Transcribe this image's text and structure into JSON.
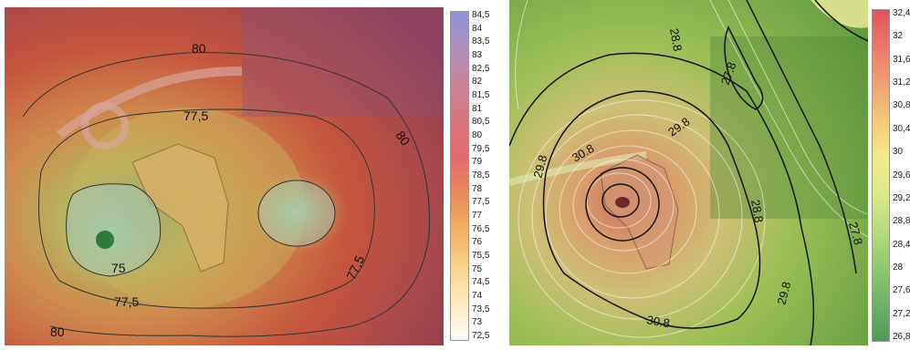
{
  "left_map": {
    "contour_labels": [
      "80",
      "77,5",
      "80",
      "77,5",
      "75",
      "77,5",
      "80"
    ],
    "colorbar": {
      "ticks": [
        "84,5",
        "84",
        "83,5",
        "83",
        "82,5",
        "82",
        "81,5",
        "81",
        "80,5",
        "80",
        "79,5",
        "79",
        "78,5",
        "78",
        "77,5",
        "77",
        "76,5",
        "76",
        "75,5",
        "75",
        "74,5",
        "74",
        "73,5",
        "73",
        "72,5"
      ],
      "colors": [
        "#8e95d6",
        "#b08fbf",
        "#c98597",
        "#d8747a",
        "#e06a6e",
        "#e98a5a",
        "#f2b061",
        "#f8d48c",
        "#fbe9bf",
        "#ffffff"
      ]
    }
  },
  "right_map": {
    "contour_labels": [
      "28.8",
      "27.8",
      "29.8",
      "30.8",
      "29.8",
      "28.8",
      "27.8",
      "29.8",
      "30.8"
    ],
    "colorbar": {
      "ticks": [
        "32,4",
        "32",
        "31,6",
        "31,2",
        "30,8",
        "30,4",
        "30",
        "29,6",
        "29,2",
        "28,8",
        "28,4",
        "28",
        "27,6",
        "27,2",
        "26,8"
      ],
      "colors": [
        "#e0525a",
        "#ea7a6a",
        "#f0a070",
        "#f4c878",
        "#f3ea8a",
        "#dbe98a",
        "#b6db7c",
        "#8ec86e",
        "#6eb266",
        "#4f9a5a"
      ]
    }
  }
}
